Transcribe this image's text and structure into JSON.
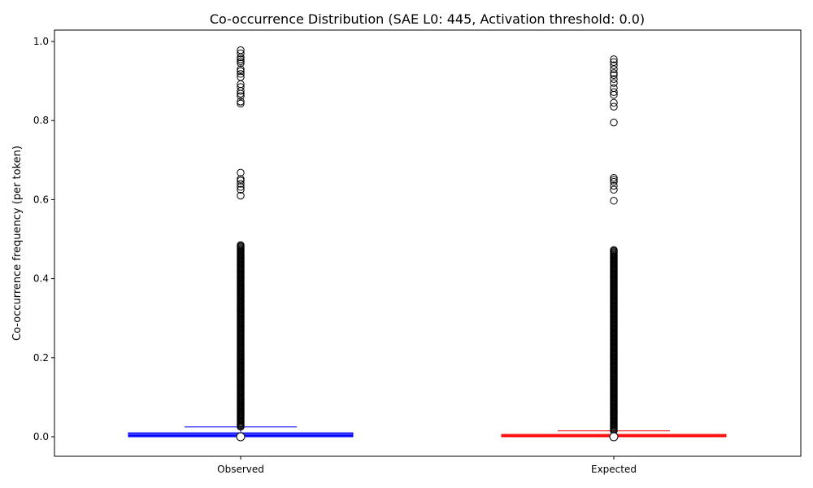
{
  "chart_data": {
    "type": "boxplot",
    "title": "Co-occurrence Distribution (SAE L0: 445, Activation threshold: 0.0)",
    "xlabel": "",
    "ylabel": "Co-occurrence frequency (per token)",
    "ylim": [
      -0.05,
      1.03
    ],
    "yticks": [
      0.0,
      0.2,
      0.4,
      0.6,
      0.8,
      1.0
    ],
    "ytick_labels": [
      "0.0",
      "0.2",
      "0.4",
      "0.6",
      "0.8",
      "1.0"
    ],
    "grid": false,
    "categories": [
      "Observed",
      "Expected"
    ],
    "series": [
      {
        "category": "Observed",
        "color": "#0000ff",
        "whisker_low": 0.0,
        "q1": 0.0,
        "median": 0.003,
        "q3": 0.01,
        "whisker_high": 0.025,
        "outlier_band": [
          0.025,
          0.487
        ],
        "outliers": [
          0.61,
          0.625,
          0.632,
          0.64,
          0.648,
          0.652,
          0.668,
          0.843,
          0.848,
          0.862,
          0.868,
          0.875,
          0.885,
          0.892,
          0.91,
          0.918,
          0.925,
          0.93,
          0.945,
          0.95,
          0.955,
          0.96,
          0.97,
          0.978
        ]
      },
      {
        "category": "Expected",
        "color": "#ff0000",
        "whisker_low": 0.0,
        "q1": 0.0,
        "median": 0.002,
        "q3": 0.006,
        "whisker_high": 0.015,
        "outlier_band": [
          0.015,
          0.475
        ],
        "outliers": [
          0.597,
          0.625,
          0.635,
          0.645,
          0.65,
          0.655,
          0.795,
          0.835,
          0.845,
          0.865,
          0.872,
          0.882,
          0.895,
          0.905,
          0.915,
          0.92,
          0.93,
          0.94,
          0.948,
          0.955
        ]
      }
    ]
  }
}
